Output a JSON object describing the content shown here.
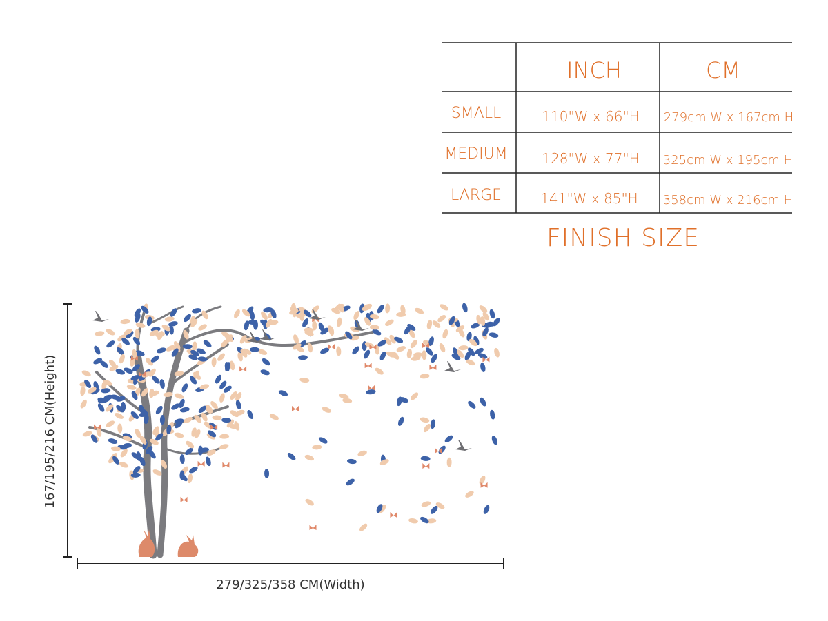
{
  "table": {
    "columns": [
      "INCH",
      "CM"
    ],
    "rows": [
      {
        "label": "SMALL",
        "inch": "110\"W x 66\"H",
        "cm": "279cm W x 167cm H"
      },
      {
        "label": "MEDIUM",
        "inch": "128\"W x 77\"H",
        "cm": "325cm W x 195cm H"
      },
      {
        "label": "LARGE",
        "inch": "141\"W x 85\"H",
        "cm": "358cm W x 216cm H"
      }
    ],
    "caption": "FINISH SIZE"
  },
  "dimensions": {
    "height": "167/195/216  CM(Height)",
    "width": "279/325/358  CM(Width)"
  }
}
